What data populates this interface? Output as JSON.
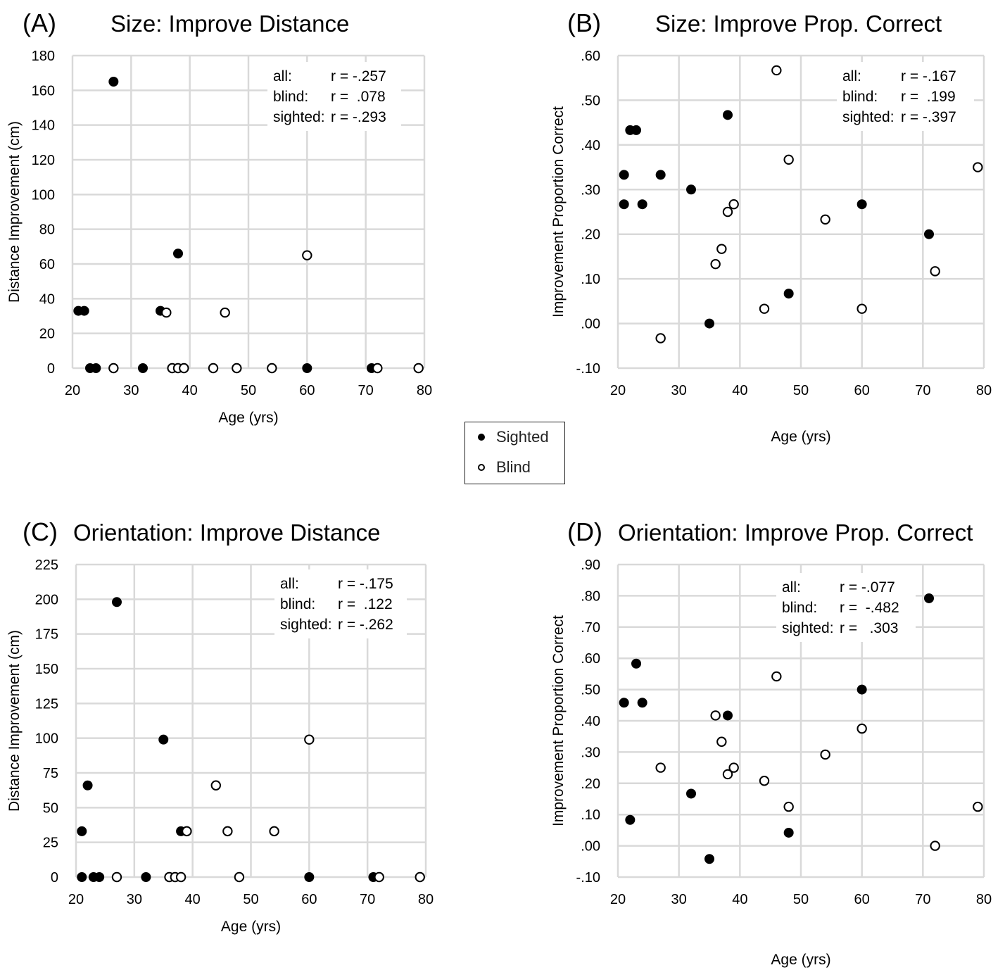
{
  "legend": {
    "sighted_label": "Sighted",
    "blind_label": "Blind"
  },
  "chart_data": [
    {
      "type": "scatter",
      "panel_label": "(A)",
      "title": "Size: Improve Distance",
      "xlabel": "Age (yrs)",
      "ylabel": "Distance Improvement (cm)",
      "xlim": [
        20,
        80
      ],
      "ylim": [
        0,
        180
      ],
      "xticks": [
        "20",
        "30",
        "40",
        "50",
        "60",
        "70",
        "80"
      ],
      "yticks": [
        "0",
        "20",
        "40",
        "60",
        "80",
        "100",
        "120",
        "140",
        "160",
        "180"
      ],
      "grid": true,
      "stats": [
        {
          "group": "all:",
          "r": "r = -.257"
        },
        {
          "group": "blind:",
          "r": "r =  .078"
        },
        {
          "group": "sighted:",
          "r": "r = -.293"
        }
      ],
      "series": [
        {
          "name": "Sighted",
          "marker": "filled",
          "points": [
            [
              21,
              33
            ],
            [
              22,
              33
            ],
            [
              23,
              0
            ],
            [
              24,
              0
            ],
            [
              27,
              165
            ],
            [
              32,
              0
            ],
            [
              35,
              33
            ],
            [
              38,
              66
            ],
            [
              60,
              0
            ],
            [
              71,
              0
            ]
          ]
        },
        {
          "name": "Blind",
          "marker": "open",
          "points": [
            [
              27,
              0
            ],
            [
              36,
              32
            ],
            [
              37,
              0
            ],
            [
              38,
              0
            ],
            [
              39,
              0
            ],
            [
              44,
              0
            ],
            [
              46,
              32
            ],
            [
              48,
              0
            ],
            [
              54,
              0
            ],
            [
              60,
              65
            ],
            [
              72,
              0
            ],
            [
              79,
              0
            ]
          ]
        }
      ]
    },
    {
      "type": "scatter",
      "panel_label": "(B)",
      "title": "Size: Improve Prop. Correct",
      "xlabel": "Age (yrs)",
      "ylabel": "Improvement Proportion Correct",
      "xlim": [
        20,
        80
      ],
      "ylim": [
        -0.1,
        0.6
      ],
      "xticks": [
        "20",
        "30",
        "40",
        "50",
        "60",
        "70",
        "80"
      ],
      "yticks": [
        "-.10",
        ".00",
        ".10",
        ".20",
        ".30",
        ".40",
        ".50",
        ".60"
      ],
      "grid": true,
      "stats": [
        {
          "group": "all:",
          "r": "r = -.167"
        },
        {
          "group": "blind:",
          "r": "r =  .199"
        },
        {
          "group": "sighted:",
          "r": "r = -.397"
        }
      ],
      "series": [
        {
          "name": "Sighted",
          "marker": "filled",
          "points": [
            [
              21,
              0.333
            ],
            [
              21,
              0.267
            ],
            [
              22,
              0.433
            ],
            [
              23,
              0.433
            ],
            [
              24,
              0.267
            ],
            [
              27,
              0.333
            ],
            [
              32,
              0.3
            ],
            [
              35,
              0.0
            ],
            [
              38,
              0.467
            ],
            [
              48,
              0.067
            ],
            [
              60,
              0.267
            ],
            [
              71,
              0.2
            ]
          ]
        },
        {
          "name": "Blind",
          "marker": "open",
          "points": [
            [
              27,
              -0.033
            ],
            [
              36,
              0.133
            ],
            [
              37,
              0.167
            ],
            [
              38,
              0.25
            ],
            [
              39,
              0.267
            ],
            [
              44,
              0.033
            ],
            [
              46,
              0.567
            ],
            [
              48,
              0.367
            ],
            [
              54,
              0.233
            ],
            [
              60,
              0.033
            ],
            [
              72,
              0.117
            ],
            [
              79,
              0.35
            ]
          ]
        }
      ]
    },
    {
      "type": "scatter",
      "panel_label": "(C)",
      "title": "Orientation: Improve Distance",
      "xlabel": "Age (yrs)",
      "ylabel": "Distance Improvement (cm)",
      "xlim": [
        20,
        80
      ],
      "ylim": [
        0,
        225
      ],
      "xticks": [
        "20",
        "30",
        "40",
        "50",
        "60",
        "70",
        "80"
      ],
      "yticks": [
        "0",
        "25",
        "50",
        "75",
        "100",
        "125",
        "150",
        "175",
        "200",
        "225"
      ],
      "grid": true,
      "stats": [
        {
          "group": "all:",
          "r": "r = -.175"
        },
        {
          "group": "blind:",
          "r": "r =  .122"
        },
        {
          "group": "sighted:",
          "r": "r = -.262"
        }
      ],
      "series": [
        {
          "name": "Sighted",
          "marker": "filled",
          "points": [
            [
              21,
              33
            ],
            [
              21,
              0
            ],
            [
              22,
              66
            ],
            [
              23,
              0
            ],
            [
              24,
              0
            ],
            [
              27,
              198
            ],
            [
              32,
              0
            ],
            [
              35,
              99
            ],
            [
              38,
              33
            ],
            [
              60,
              0
            ],
            [
              71,
              0
            ]
          ]
        },
        {
          "name": "Blind",
          "marker": "open",
          "points": [
            [
              27,
              0
            ],
            [
              36,
              0
            ],
            [
              37,
              0
            ],
            [
              38,
              0
            ],
            [
              39,
              33
            ],
            [
              44,
              66
            ],
            [
              46,
              33
            ],
            [
              48,
              0
            ],
            [
              54,
              33
            ],
            [
              60,
              99
            ],
            [
              72,
              0
            ],
            [
              79,
              0
            ]
          ]
        }
      ]
    },
    {
      "type": "scatter",
      "panel_label": "(D)",
      "title": "Orientation: Improve Prop. Correct",
      "xlabel": "Age (yrs)",
      "ylabel": "Improvement Proportion Correct",
      "xlim": [
        20,
        80
      ],
      "ylim": [
        -0.1,
        0.9
      ],
      "xticks": [
        "20",
        "30",
        "40",
        "50",
        "60",
        "70",
        "80"
      ],
      "yticks": [
        "-.10",
        ".00",
        ".10",
        ".20",
        ".30",
        ".40",
        ".50",
        ".60",
        ".70",
        ".80",
        ".90"
      ],
      "grid": true,
      "stats": [
        {
          "group": "all:",
          "r": "r = -.077"
        },
        {
          "group": "blind:",
          "r": "r =  -.482"
        },
        {
          "group": "sighted:",
          "r": "r =   .303"
        }
      ],
      "series": [
        {
          "name": "Sighted",
          "marker": "filled",
          "points": [
            [
              21,
              0.458
            ],
            [
              22,
              0.083
            ],
            [
              23,
              0.583
            ],
            [
              24,
              0.458
            ],
            [
              32,
              0.167
            ],
            [
              35,
              -0.042
            ],
            [
              38,
              0.417
            ],
            [
              48,
              0.042
            ],
            [
              60,
              0.5
            ],
            [
              71,
              0.792
            ]
          ]
        },
        {
          "name": "Blind",
          "marker": "open",
          "points": [
            [
              27,
              0.25
            ],
            [
              36,
              0.417
            ],
            [
              37,
              0.333
            ],
            [
              38,
              0.229
            ],
            [
              39,
              0.25
            ],
            [
              44,
              0.208
            ],
            [
              46,
              0.542
            ],
            [
              48,
              0.125
            ],
            [
              54,
              0.292
            ],
            [
              60,
              0.375
            ],
            [
              72,
              0.0
            ],
            [
              79,
              0.125
            ]
          ]
        }
      ]
    }
  ]
}
